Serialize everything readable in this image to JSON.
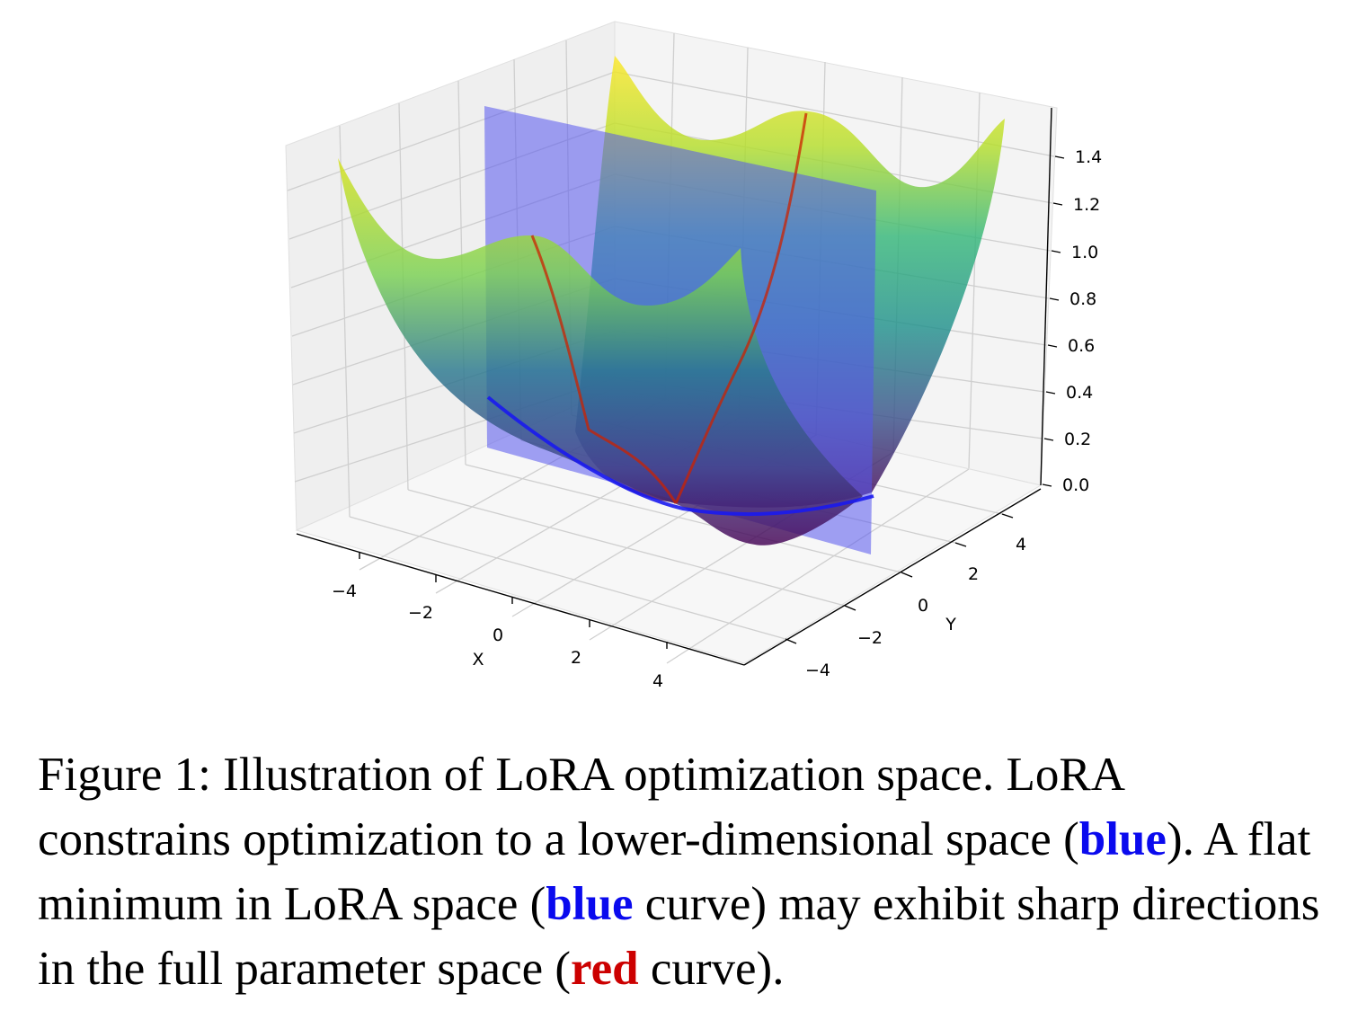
{
  "figure": {
    "caption": {
      "part1": "Figure 1: Illustration of LoRA optimization space. LoRA constrains optimization to a lower-dimensional space (",
      "blue1": "blue",
      "part2": "). A flat minimum in LoRA space (",
      "blue2": "blue",
      "part3": " curve) may exhibit sharp directions in the full parameter space (",
      "red": "red",
      "part4": " curve)."
    },
    "colors": {
      "highlight_blue": "#0a0aee",
      "highlight_red": "#cc0000",
      "plane": "#5555ee",
      "blue_curve": "#1a1aee",
      "red_curve": "#cc2200"
    }
  },
  "chart_data": {
    "type": "surface3d",
    "title": "",
    "colormap": "viridis",
    "axes": {
      "x": {
        "label": "X",
        "ticks": [
          "−4",
          "−2",
          "0",
          "2",
          "4"
        ],
        "range": [
          -5,
          5
        ]
      },
      "y": {
        "label": "Y",
        "ticks": [
          "−4",
          "−2",
          "0",
          "2",
          "4"
        ],
        "range": [
          -5,
          5
        ]
      },
      "z": {
        "label": "",
        "ticks": [
          "0.0",
          "0.2",
          "0.4",
          "0.6",
          "0.8",
          "1.0",
          "1.2",
          "1.4"
        ],
        "range": [
          0,
          1.5
        ]
      }
    },
    "grid": true,
    "overlays": [
      {
        "name": "",
        "type": "plane",
        "color": "blue"
      },
      {
        "name": "",
        "type": "curve",
        "color": "blue"
      },
      {
        "name": "",
        "type": "curve",
        "color": "red"
      }
    ]
  }
}
